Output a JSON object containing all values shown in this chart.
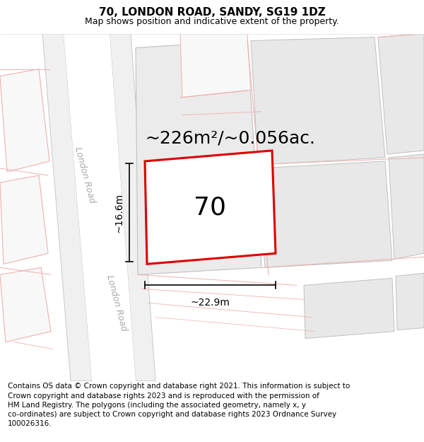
{
  "title": "70, LONDON ROAD, SANDY, SG19 1DZ",
  "subtitle": "Map shows position and indicative extent of the property.",
  "area_text": "~226m²/~0.056ac.",
  "number_label": "70",
  "dim_width": "~22.9m",
  "dim_height": "~16.6m",
  "road_label": "London Road",
  "footer": "Contains OS data © Crown copyright and database right 2021. This information is subject to Crown copyright and database rights 2023 and is reproduced with the permission of HM Land Registry. The polygons (including the associated geometry, namely x, y co-ordinates) are subject to Crown copyright and database rights 2023 Ordnance Survey 100026316.",
  "bg_color": "#ffffff",
  "road_fill": "#f5f5f5",
  "road_edge": "#cccccc",
  "plot_fill": "#e8e8e8",
  "plot_edge_pink": "#f0b0b0",
  "plot_edge_gray": "#c0c0c0",
  "red_color": "#dd0000",
  "title_fontsize": 11,
  "subtitle_fontsize": 9,
  "footer_fontsize": 7.5,
  "road_label_color": "#aaaaaa"
}
